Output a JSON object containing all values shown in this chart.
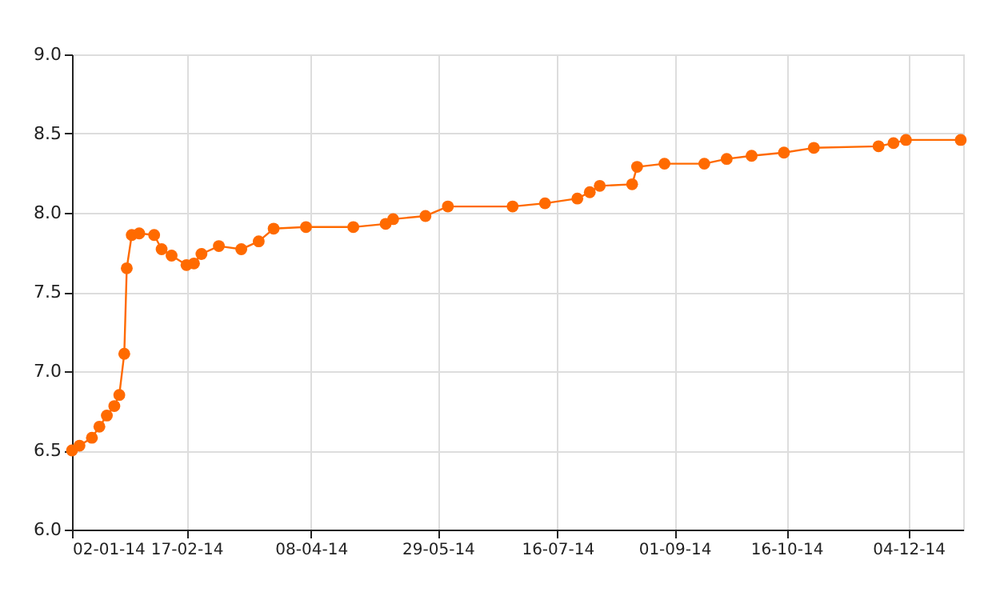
{
  "chart_data": {
    "type": "line",
    "marker": "circle",
    "grid": true,
    "x": [
      "2014-01-02",
      "2014-01-05",
      "2014-01-10",
      "2014-01-13",
      "2014-01-16",
      "2014-01-19",
      "2014-01-21",
      "2014-01-23",
      "2014-01-24",
      "2014-01-26",
      "2014-01-29",
      "2014-02-04",
      "2014-02-07",
      "2014-02-11",
      "2014-02-17",
      "2014-02-20",
      "2014-02-23",
      "2014-03-02",
      "2014-03-11",
      "2014-03-18",
      "2014-03-24",
      "2014-04-06",
      "2014-04-25",
      "2014-05-08",
      "2014-05-11",
      "2014-05-24",
      "2014-06-02",
      "2014-06-28",
      "2014-07-11",
      "2014-07-24",
      "2014-07-29",
      "2014-08-02",
      "2014-08-15",
      "2014-08-17",
      "2014-08-28",
      "2014-09-13",
      "2014-09-22",
      "2014-10-02",
      "2014-10-15",
      "2014-10-27",
      "2014-11-22",
      "2014-11-28",
      "2014-12-03",
      "2014-12-25"
    ],
    "series": [
      {
        "color": "#ff6a00",
        "values": [
          6.5,
          6.53,
          6.58,
          6.65,
          6.72,
          6.78,
          6.85,
          7.11,
          7.65,
          7.86,
          7.87,
          7.86,
          7.77,
          7.73,
          7.67,
          7.68,
          7.74,
          7.79,
          7.77,
          7.82,
          7.9,
          7.91,
          7.91,
          7.93,
          7.96,
          7.98,
          8.04,
          8.04,
          8.06,
          8.09,
          8.13,
          8.17,
          8.18,
          8.29,
          8.31,
          8.31,
          8.34,
          8.36,
          8.38,
          8.41,
          8.42,
          8.44,
          8.46,
          8.46
        ]
      }
    ],
    "xlim": [
      "2014-01-02",
      "2014-12-26"
    ],
    "xticks": [
      {
        "value": "2014-01-02",
        "label": "02-01-14"
      },
      {
        "value": "2014-02-17",
        "label": "17-02-14"
      },
      {
        "value": "2014-04-08",
        "label": "08-04-14"
      },
      {
        "value": "2014-05-29",
        "label": "29-05-14"
      },
      {
        "value": "2014-07-16",
        "label": "16-07-14"
      },
      {
        "value": "2014-09-01",
        "label": "01-09-14"
      },
      {
        "value": "2014-10-16",
        "label": "16-10-14"
      },
      {
        "value": "2014-12-04",
        "label": "04-12-14"
      }
    ],
    "ylim": [
      6.0,
      9.0
    ],
    "yticks": [
      {
        "value": 6.0,
        "label": "6.0"
      },
      {
        "value": 6.5,
        "label": "6.5"
      },
      {
        "value": 7.0,
        "label": "7.0"
      },
      {
        "value": 7.5,
        "label": "7.5"
      },
      {
        "value": 8.0,
        "label": "8.0"
      },
      {
        "value": 8.5,
        "label": "8.5"
      },
      {
        "value": 9.0,
        "label": "9.0"
      }
    ]
  }
}
